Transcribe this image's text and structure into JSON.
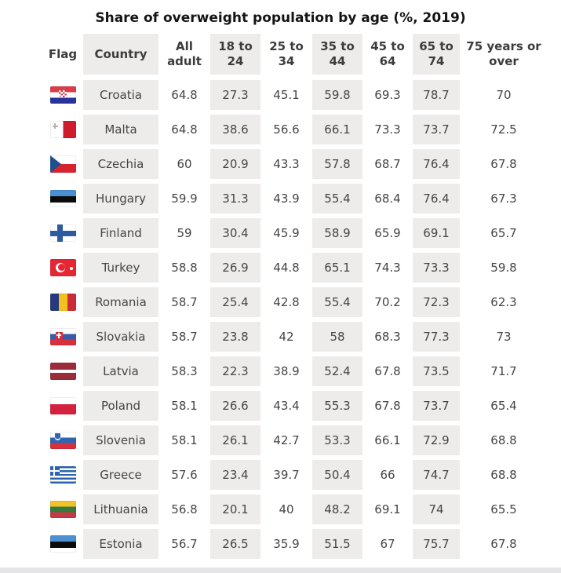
{
  "title": "Share of overweight population by age (%, 2019)",
  "colors": {
    "shade": "#eeeceb",
    "header_text": "#3c3c3c",
    "value_text": "#454545",
    "title_text": "#141414",
    "bottom_strip": "#e5e5e8"
  },
  "chart_data": {
    "type": "table",
    "title": "Share of overweight population by age (%, 2019)",
    "columns": [
      "Flag",
      "Country",
      "All adult",
      "18 to 24",
      "25 to 34",
      "35 to 44",
      "45 to 64",
      "65 to 74",
      "75 years or over"
    ],
    "shaded_columns": [
      "Country",
      "18 to 24",
      "35 to 44",
      "65 to 74"
    ],
    "rows": [
      {
        "flag": "croatia",
        "country": "Croatia",
        "values": [
          64.8,
          27.3,
          45.1,
          59.8,
          69.3,
          78.7,
          70
        ]
      },
      {
        "flag": "malta",
        "country": "Malta",
        "values": [
          64.8,
          38.6,
          56.6,
          66.1,
          73.3,
          73.7,
          72.5
        ]
      },
      {
        "flag": "czechia",
        "country": "Czechia",
        "values": [
          60,
          20.9,
          43.3,
          57.8,
          68.7,
          76.4,
          67.8
        ]
      },
      {
        "flag": "hungary",
        "country": "Hungary",
        "values": [
          59.9,
          31.3,
          43.9,
          55.4,
          68.4,
          76.4,
          67.3
        ]
      },
      {
        "flag": "finland",
        "country": "Finland",
        "values": [
          59,
          30.4,
          45.9,
          58.9,
          65.9,
          69.1,
          65.7
        ]
      },
      {
        "flag": "turkey",
        "country": "Turkey",
        "values": [
          58.8,
          26.9,
          44.8,
          65.1,
          74.3,
          73.3,
          59.8
        ]
      },
      {
        "flag": "romania",
        "country": "Romania",
        "values": [
          58.7,
          25.4,
          42.8,
          55.4,
          70.2,
          72.3,
          62.3
        ]
      },
      {
        "flag": "slovakia",
        "country": "Slovakia",
        "values": [
          58.7,
          23.8,
          42,
          58,
          68.3,
          77.3,
          73
        ]
      },
      {
        "flag": "latvia",
        "country": "Latvia",
        "values": [
          58.3,
          22.3,
          38.9,
          52.4,
          67.8,
          73.5,
          71.7
        ]
      },
      {
        "flag": "poland",
        "country": "Poland",
        "values": [
          58.1,
          26.6,
          43.4,
          55.3,
          67.8,
          73.7,
          65.4
        ]
      },
      {
        "flag": "slovenia",
        "country": "Slovenia",
        "values": [
          58.1,
          26.1,
          42.7,
          53.3,
          66.1,
          72.9,
          68.8
        ]
      },
      {
        "flag": "greece",
        "country": "Greece",
        "values": [
          57.6,
          23.4,
          39.7,
          50.4,
          66,
          74.7,
          68.8
        ]
      },
      {
        "flag": "lithuania",
        "country": "Lithuania",
        "values": [
          56.8,
          20.1,
          40,
          48.2,
          69.1,
          74,
          65.5
        ]
      },
      {
        "flag": "estonia",
        "country": "Estonia",
        "values": [
          56.7,
          26.5,
          35.9,
          51.5,
          67,
          75.7,
          67.8
        ]
      }
    ]
  }
}
